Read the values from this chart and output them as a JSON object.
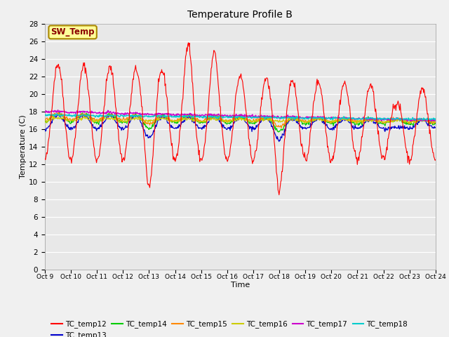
{
  "title": "Temperature Profile B",
  "xlabel": "Time",
  "ylabel": "Temperature (C)",
  "ylim": [
    0,
    28
  ],
  "yticks": [
    0,
    2,
    4,
    6,
    8,
    10,
    12,
    14,
    16,
    18,
    20,
    22,
    24,
    26,
    28
  ],
  "xtick_labels": [
    "Oct 9",
    "Oct 10",
    "Oct 11",
    "Oct 12",
    "Oct 13",
    "Oct 14",
    "Oct 15",
    "Oct 16",
    "Oct 17",
    "Oct 18",
    "Oct 19",
    "Oct 20",
    "Oct 21",
    "Oct 22",
    "Oct 23",
    "Oct 24"
  ],
  "sw_temp_label": "SW_Temp",
  "legend_entries": [
    "TC_temp12",
    "TC_temp13",
    "TC_temp14",
    "TC_temp15",
    "TC_temp16",
    "TC_temp17",
    "TC_temp18"
  ],
  "colors": {
    "TC_temp12": "#FF0000",
    "TC_temp13": "#0000CC",
    "TC_temp14": "#00CC00",
    "TC_temp15": "#FF8800",
    "TC_temp16": "#CCCC00",
    "TC_temp17": "#CC00CC",
    "TC_temp18": "#00CCCC"
  },
  "fig_facecolor": "#F0F0F0",
  "plot_bg_color": "#E8E8E8",
  "sw_temp_bg": "#FFFF99",
  "sw_temp_border": "#AA8800"
}
